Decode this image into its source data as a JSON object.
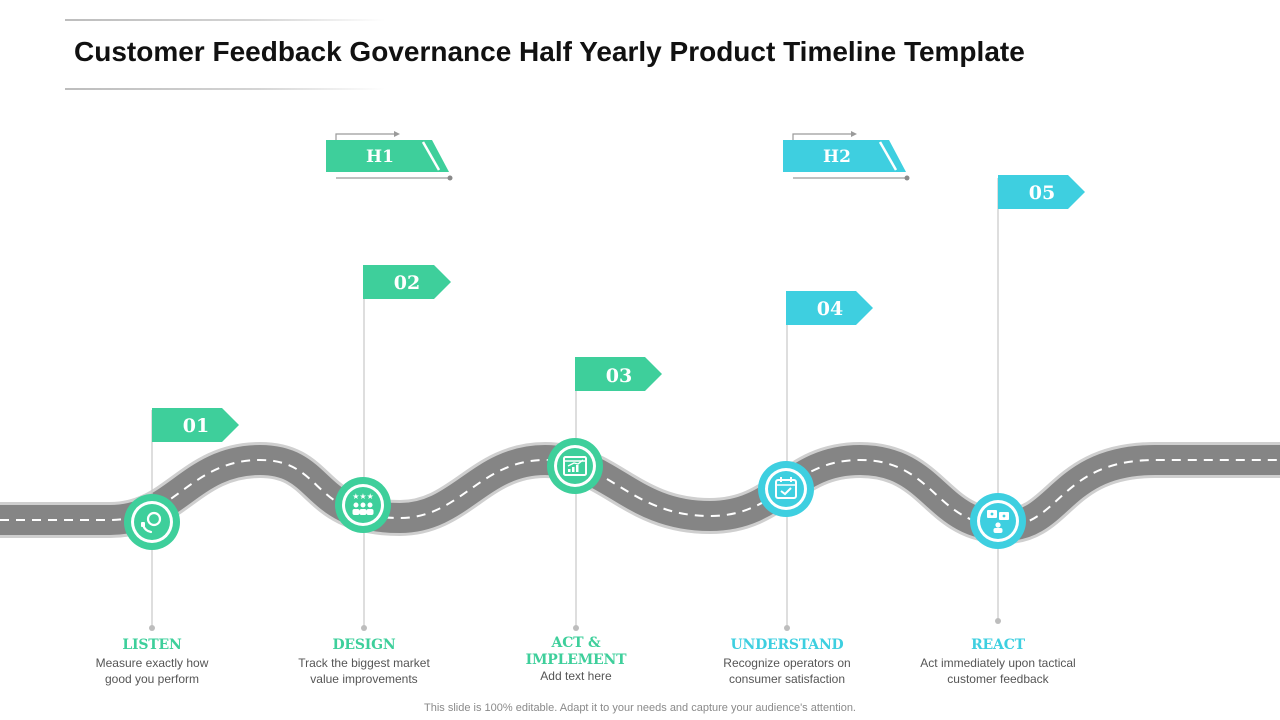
{
  "title": "Customer Feedback Governance Half Yearly Product Timeline Template",
  "colors": {
    "green": "#3ecf9b",
    "cyan": "#3ecfe0",
    "road": "#808080",
    "road_edge": "#cfcfcf",
    "dash": "#ffffff"
  },
  "halves": [
    {
      "label": "H1",
      "color": "green"
    },
    {
      "label": "H2",
      "color": "cyan"
    }
  ],
  "steps": [
    {
      "number": "01",
      "title": "LISTEN",
      "description": "Measure exactly how good you perform",
      "icon": "phone-listen-icon",
      "color": "green"
    },
    {
      "number": "02",
      "title": "DESIGN",
      "description": "Track the biggest market value improvements",
      "icon": "team-rating-icon",
      "color": "green"
    },
    {
      "number": "03",
      "title": "ACT & IMPLEMENT",
      "description": "Add text here",
      "icon": "growth-chart-icon",
      "color": "green"
    },
    {
      "number": "04",
      "title": "UNDERSTAND",
      "description": "Recognize operators on consumer satisfaction",
      "icon": "calendar-check-icon",
      "color": "cyan"
    },
    {
      "number": "05",
      "title": "REACT",
      "description": "Act immediately upon tactical customer feedback",
      "icon": "feedback-chat-icon",
      "color": "cyan"
    }
  ],
  "footer": "This slide is 100% editable. Adapt it to your needs and capture your audience's attention."
}
